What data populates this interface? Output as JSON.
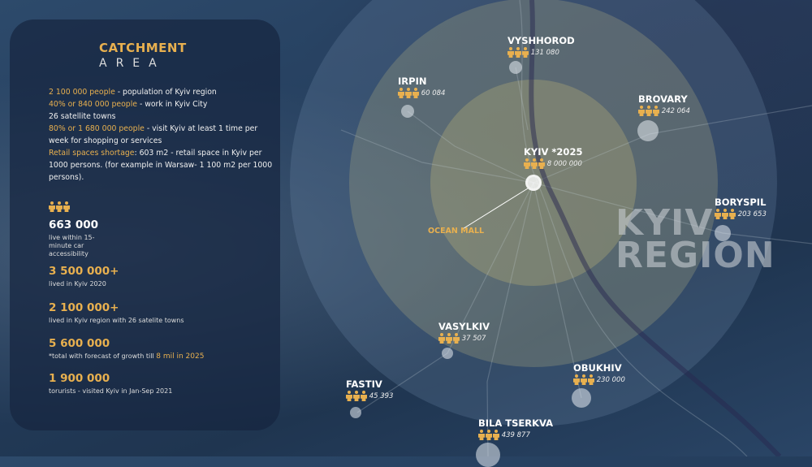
{
  "colors": {
    "accent": "#e8b04f",
    "background": "#243d5c"
  },
  "panel": {
    "title_line1": "CATCHMENT",
    "title_line2": "AREA",
    "intro": [
      {
        "highlight": "2 100 000 people",
        "text": " - population of Kyiv region"
      },
      {
        "highlight": "40% or 840 000 people",
        "text": " - work in Kyiv City"
      },
      {
        "highlight": "",
        "text": "26 satellite towns"
      },
      {
        "highlight": "80% or 1 680 000 people",
        "text": " - visit Kyiv at least 1 time per week for shopping or services"
      },
      {
        "highlight": "Retail spaces shortage",
        "text": ": 603 m2 - retail space in Kyiv per 1000 persons. (for example in Warsaw-  1 100 m2 per 1000 persons)."
      }
    ],
    "people_icon": "people-icon",
    "stats": [
      {
        "value": "663 000",
        "desc": "live within 15-minute car accessibility",
        "highlight": ""
      },
      {
        "value": "3 500 000+",
        "desc": "lived in Kyiv 2020",
        "highlight": ""
      },
      {
        "value": "2 100 000+",
        "desc": "lived in Kyiv region with 26 satelite towns",
        "highlight": ""
      },
      {
        "value": "5 600 000",
        "desc": "*total with forecast of growth till ",
        "highlight": "8 mil in 2025"
      },
      {
        "value": "1 900 000",
        "desc": "torurists - visited Kyiv in Jan-Sep 2021",
        "highlight": ""
      }
    ]
  },
  "map": {
    "region_label_1": "KYIV",
    "region_label_2": "REGION",
    "mall_label": "OCEAN MALL",
    "towns": [
      {
        "name": "VYSHHOROD",
        "population": "131 080"
      },
      {
        "name": "IRPIN",
        "population": "60 084"
      },
      {
        "name": "BROVARY",
        "population": "242 064"
      },
      {
        "name": "KYIV *2025",
        "population": "8 000 000"
      },
      {
        "name": "BORYSPIL",
        "population": "203 653"
      },
      {
        "name": "VASYLKIV",
        "population": "37 507"
      },
      {
        "name": "OBUKHIV",
        "population": "230 000"
      },
      {
        "name": "FASTIV",
        "population": "45 393"
      },
      {
        "name": "BILA TSERKVA",
        "population": "439 877"
      }
    ]
  }
}
